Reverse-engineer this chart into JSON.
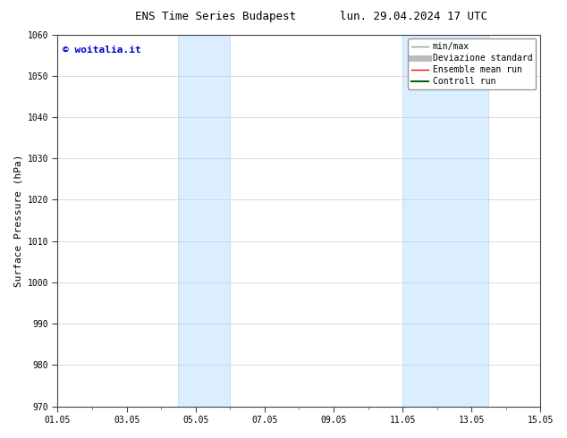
{
  "title_left": "ENS Time Series Budapest",
  "title_right": "lun. 29.04.2024 17 UTC",
  "ylabel": "Surface Pressure (hPa)",
  "ylim": [
    970,
    1060
  ],
  "yticks": [
    970,
    980,
    990,
    1000,
    1010,
    1020,
    1030,
    1040,
    1050,
    1060
  ],
  "xtick_labels": [
    "01.05",
    "03.05",
    "05.05",
    "07.05",
    "09.05",
    "11.05",
    "13.05",
    "15.05"
  ],
  "xtick_positions": [
    0,
    2,
    4,
    6,
    8,
    10,
    12,
    14
  ],
  "xlim": [
    0,
    14
  ],
  "shaded_bands": [
    {
      "x_start": 3.5,
      "x_end": 5.0
    },
    {
      "x_start": 10.0,
      "x_end": 12.5
    }
  ],
  "shaded_color": "#daeeff",
  "shaded_edgecolor": "#b8d8f0",
  "watermark_text": "© woitalia.it",
  "watermark_color": "#0000cc",
  "legend_entries": [
    {
      "label": "min/max",
      "color": "#999999",
      "lw": 1.0
    },
    {
      "label": "Deviazione standard",
      "color": "#bbbbbb",
      "lw": 5
    },
    {
      "label": "Ensemble mean run",
      "color": "#ff0000",
      "lw": 1.0
    },
    {
      "label": "Controll run",
      "color": "#006600",
      "lw": 1.5
    }
  ],
  "bg_color": "#ffffff",
  "grid_color": "#cccccc",
  "title_fontsize": 9,
  "tick_fontsize": 7,
  "ylabel_fontsize": 8,
  "watermark_fontsize": 8,
  "legend_fontsize": 7
}
